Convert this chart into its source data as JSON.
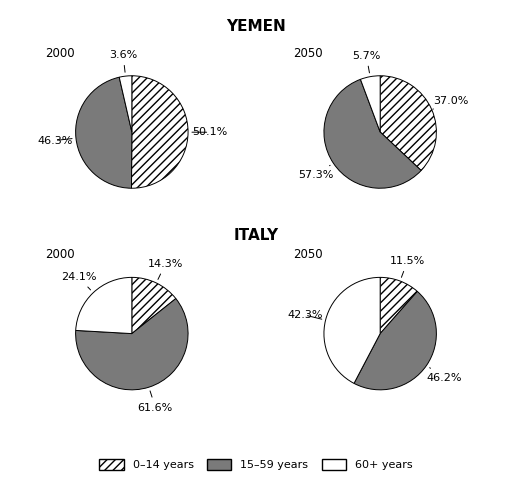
{
  "title_yemen": "YEMEN",
  "title_italy": "ITALY",
  "charts": {
    "yemen_2000": {
      "label": "2000",
      "values": [
        50.1,
        46.3,
        3.6
      ],
      "pct_labels": [
        "50.1%",
        "46.3%",
        "3.6%"
      ]
    },
    "yemen_2050": {
      "label": "2050",
      "values": [
        37.0,
        57.3,
        5.7
      ],
      "pct_labels": [
        "37.0%",
        "57.3%",
        "5.7%"
      ]
    },
    "italy_2000": {
      "label": "2000",
      "values": [
        14.3,
        61.6,
        24.1
      ],
      "pct_labels": [
        "14.3%",
        "61.6%",
        "24.1%"
      ]
    },
    "italy_2050": {
      "label": "2050",
      "values": [
        11.5,
        46.2,
        42.3
      ],
      "pct_labels": [
        "11.5%",
        "46.2%",
        "42.3%"
      ]
    }
  },
  "legend_labels": [
    "0–14 years",
    "15–59 years",
    "60+ years"
  ],
  "gray_color": "#7a7a7a",
  "white_color": "#ffffff",
  "background_color": "#ffffff",
  "title_fontsize": 11,
  "label_fontsize": 8,
  "year_fontsize": 8.5
}
